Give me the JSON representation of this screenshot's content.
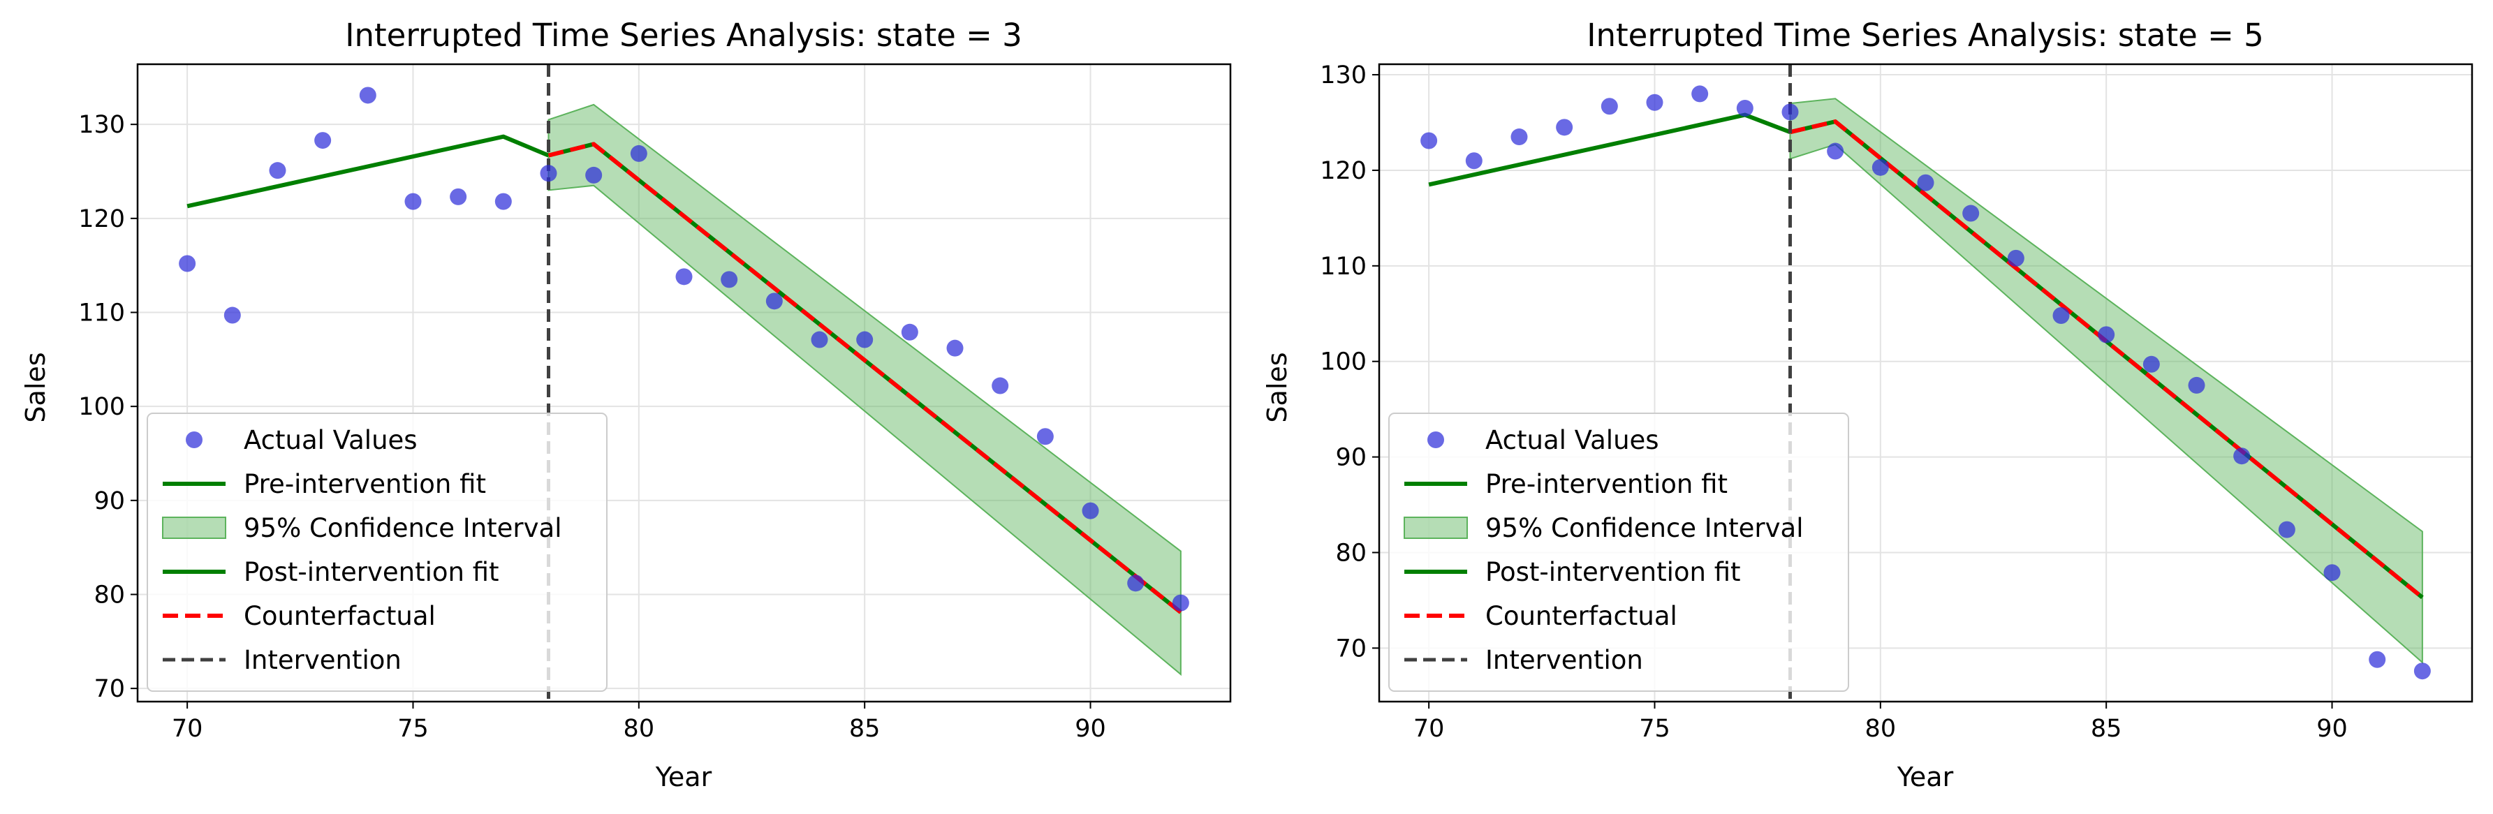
{
  "colors": {
    "actual": "#2a2ad8",
    "pre_fit": "#007f00",
    "post_fit": "#007f00",
    "ci_fill": "#5cb35c",
    "counterfactual": "#ff0000",
    "intervention": "#404040",
    "grid": "#e3e3e3"
  },
  "chart_data": [
    {
      "type": "scatter",
      "title": "Interrupted Time Series Analysis: state = 3",
      "xlabel": "Year",
      "ylabel": "Sales",
      "xlim": [
        68.9,
        93.1
      ],
      "ylim": [
        68.6,
        136.4
      ],
      "xticks": [
        70,
        75,
        80,
        85,
        90
      ],
      "yticks": [
        70,
        80,
        90,
        100,
        110,
        120,
        130
      ],
      "grid": true,
      "legend_position": "lower-left",
      "intervention_x": 78,
      "actual": {
        "name": "Actual Values",
        "x": [
          70,
          71,
          72,
          73,
          74,
          75,
          76,
          77,
          78,
          79,
          80,
          81,
          82,
          83,
          84,
          85,
          86,
          87,
          88,
          89,
          90,
          91,
          92
        ],
        "y": [
          115.2,
          109.7,
          125.1,
          128.3,
          133.1,
          121.8,
          122.3,
          121.8,
          124.8,
          124.6,
          126.9,
          113.8,
          113.5,
          111.2,
          107.1,
          107.1,
          107.9,
          106.2,
          102.2,
          96.8,
          88.9,
          81.2,
          79.1
        ]
      },
      "pre_fit": {
        "name": "Pre-intervention fit",
        "x": [
          70,
          77,
          78
        ],
        "y": [
          121.3,
          128.7,
          126.7
        ]
      },
      "post_fit": {
        "name": "Post-intervention fit",
        "x": [
          78,
          79,
          92
        ],
        "y": [
          126.7,
          127.9,
          78.1
        ]
      },
      "counterfactual": {
        "name": "Counterfactual",
        "x": [
          78,
          79,
          92
        ],
        "y": [
          126.7,
          127.9,
          78.1
        ]
      },
      "ci": {
        "name": "95% Confidence Interval",
        "x": [
          78,
          79,
          92
        ],
        "lower": [
          123.0,
          123.5,
          71.5
        ],
        "upper": [
          130.5,
          132.1,
          84.6
        ]
      },
      "intervention_label": "Intervention"
    },
    {
      "type": "scatter",
      "title": "Interrupted Time Series Analysis: state = 5",
      "xlabel": "Year",
      "ylabel": "Sales",
      "xlim": [
        68.9,
        93.1
      ],
      "ylim": [
        64.4,
        131.1
      ],
      "xticks": [
        70,
        75,
        80,
        85,
        90
      ],
      "yticks": [
        70,
        80,
        90,
        100,
        110,
        120,
        130
      ],
      "grid": true,
      "legend_position": "lower-left",
      "intervention_x": 78,
      "actual": {
        "name": "Actual Values",
        "x": [
          70,
          71,
          72,
          73,
          74,
          75,
          76,
          77,
          78,
          79,
          80,
          81,
          82,
          83,
          84,
          85,
          86,
          87,
          88,
          89,
          90,
          91,
          92
        ],
        "y": [
          123.1,
          121.0,
          123.5,
          124.5,
          126.7,
          127.1,
          128.0,
          126.5,
          126.1,
          122.0,
          120.3,
          118.7,
          115.5,
          110.8,
          104.8,
          102.8,
          99.7,
          97.5,
          90.1,
          82.4,
          77.9,
          68.8,
          67.6
        ]
      },
      "pre_fit": {
        "name": "Pre-intervention fit",
        "x": [
          70,
          77,
          78
        ],
        "y": [
          118.5,
          125.8,
          124.0
        ]
      },
      "post_fit": {
        "name": "Post-intervention fit",
        "x": [
          78,
          79,
          92
        ],
        "y": [
          124.0,
          125.1,
          75.3
        ]
      },
      "counterfactual": {
        "name": "Counterfactual",
        "x": [
          78,
          79,
          92
        ],
        "y": [
          124.0,
          125.1,
          75.3
        ]
      },
      "ci": {
        "name": "95% Confidence Interval",
        "x": [
          78,
          79,
          92
        ],
        "lower": [
          121.2,
          122.7,
          68.5
        ],
        "upper": [
          127.0,
          127.5,
          82.2
        ]
      },
      "intervention_label": "Intervention"
    }
  ]
}
